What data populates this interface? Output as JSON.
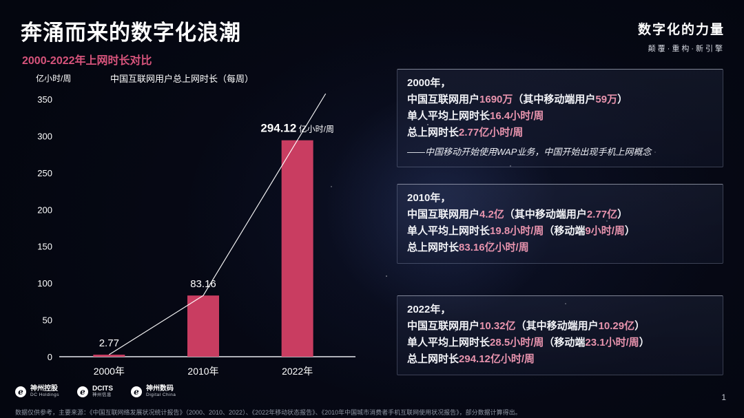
{
  "header": {
    "title": "奔涌而来的数字化浪潮",
    "subtitle": "2000-2022年上网时长对比",
    "brand": {
      "name": "数字化的力量",
      "tagline": "颠覆·重构·新引擎"
    }
  },
  "colors": {
    "accent-pink": "#e793ad",
    "subtitle-pink": "#d8547c",
    "bar": "#c93d61",
    "text": "#f2f3f7",
    "muted": "#9aa0ad"
  },
  "chart_data": {
    "type": "bar",
    "title": "中国互联网用户总上网时长（每周）",
    "ylabel": "亿小时/周",
    "xlabel": "",
    "categories": [
      "2000年",
      "2010年",
      "2022年"
    ],
    "values": [
      2.77,
      83.16,
      294.12
    ],
    "bar_labels": [
      "2.77",
      "83.16",
      "294.12"
    ],
    "bar_label_suffix": [
      "",
      "",
      "亿小时/周"
    ],
    "ylim": [
      0,
      350
    ],
    "yticks": [
      0,
      50,
      100,
      150,
      200,
      250,
      300,
      350
    ],
    "grid": false,
    "legend": "none",
    "overlay_trend_line": true,
    "colors": {
      "bar": "#c93d61",
      "line": "#ffffff"
    }
  },
  "info_boxes": [
    {
      "lines": [
        {
          "segments": [
            {
              "t": "2000年，"
            }
          ]
        },
        {
          "segments": [
            {
              "t": "中国互联网用户"
            },
            {
              "t": "1690万",
              "hl": true
            },
            {
              "t": "（其中移动端用户"
            },
            {
              "t": "59万",
              "hl": true
            },
            {
              "t": "）"
            }
          ]
        },
        {
          "segments": [
            {
              "t": "单人平均上网时长"
            },
            {
              "t": "16.4小时/周",
              "hl": true
            }
          ]
        },
        {
          "segments": [
            {
              "t": "总上网时长"
            },
            {
              "t": "2.77亿小时/周",
              "hl": true
            }
          ]
        },
        {
          "italic": true,
          "segments": [
            {
              "t": "——中国移动开始使用WAP业务，中国开始出现手机上网概念"
            }
          ]
        }
      ]
    },
    {
      "lines": [
        {
          "segments": [
            {
              "t": "2010年，"
            }
          ]
        },
        {
          "segments": [
            {
              "t": "中国互联网用户"
            },
            {
              "t": "4.2亿",
              "hl": true
            },
            {
              "t": "（其中移动端用户"
            },
            {
              "t": "2.77亿",
              "hl": true
            },
            {
              "t": "）"
            }
          ]
        },
        {
          "segments": [
            {
              "t": "单人平均上网时长"
            },
            {
              "t": "19.8小时/周",
              "hl": true
            },
            {
              "t": "（移动端"
            },
            {
              "t": "9小时/周",
              "hl": true
            },
            {
              "t": "）"
            }
          ]
        },
        {
          "segments": [
            {
              "t": "总上网时长"
            },
            {
              "t": "83.16亿小时/周",
              "hl": true
            }
          ]
        }
      ]
    },
    {
      "lines": [
        {
          "segments": [
            {
              "t": "2022年，"
            }
          ]
        },
        {
          "segments": [
            {
              "t": "中国互联网用户"
            },
            {
              "t": "10.32亿",
              "hl": true
            },
            {
              "t": "（其中移动端用户"
            },
            {
              "t": "10.29亿",
              "hl": true
            },
            {
              "t": "）"
            }
          ]
        },
        {
          "segments": [
            {
              "t": "单人平均上网时长"
            },
            {
              "t": "28.5小时/周",
              "hl": true
            },
            {
              "t": "（移动端"
            },
            {
              "t": "23.1小时/周",
              "hl": true
            },
            {
              "t": "）"
            }
          ]
        },
        {
          "segments": [
            {
              "t": "总上网时长"
            },
            {
              "t": "294.12亿小时/周",
              "hl": true
            }
          ]
        }
      ]
    }
  ],
  "footer": {
    "logos": [
      {
        "primary": "神州控股",
        "secondary": "DC Holdings"
      },
      {
        "primary": "DCITS",
        "secondary": "神州信息"
      },
      {
        "primary": "神州数码",
        "secondary": "Digital China"
      }
    ],
    "note": "数据仅供参考，主要来源：《中国互联网络发展状况统计报告》（2000、2010、2022）、《2022年移动状态报告》、《2010年中国城市消费者手机互联网使用状况报告》，部分数据计算得出。",
    "page_number": "1"
  }
}
